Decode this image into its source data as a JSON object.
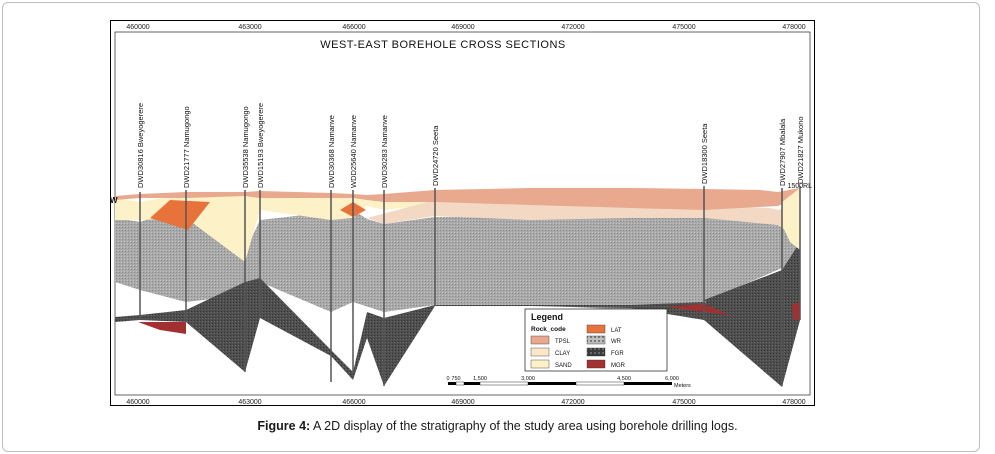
{
  "figure": {
    "title": "WEST-EAST BOREHOLE CROSS SECTIONS",
    "x_ticks_top": [
      "460000",
      "463000",
      "466000",
      "469000",
      "472000",
      "475000",
      "478000"
    ],
    "x_ticks_bottom": [
      "460000",
      "463000",
      "466000",
      "469000",
      "472000",
      "475000",
      "478000"
    ],
    "west_label": "W",
    "rl_label": "1500RL",
    "boreholes": [
      {
        "label": "DWD30816  Bweyogerere"
      },
      {
        "label": "DWD21777  Namugongo"
      },
      {
        "label": "DWD35538  Namugongo"
      },
      {
        "label": "DWD15193  Bweyogerere"
      },
      {
        "label": "DWD30368  Namanve"
      },
      {
        "label": "WDD25640  Namanve"
      },
      {
        "label": "DWD30283  Namanve"
      },
      {
        "label": "DWD24720  Seeta"
      },
      {
        "label": "DWD18300  Seeta"
      },
      {
        "label": "DWD27907  Mbalala"
      },
      {
        "label": "DWD21827  Mukono"
      }
    ],
    "legend": {
      "title": "Legend",
      "subtitle": "Rock_code",
      "items": [
        {
          "code": "TPSL",
          "color": "#e8a98e"
        },
        {
          "code": "LAT",
          "color": "#e8733a"
        },
        {
          "code": "CLAY",
          "color": "#fbe7c8"
        },
        {
          "code": "WR",
          "color": "#9a9a9a"
        },
        {
          "code": "SAND",
          "color": "#fdf1c8"
        },
        {
          "code": "FGR",
          "color": "#4a4a4a"
        },
        {
          "code": "MGR",
          "color": "#a33030"
        }
      ]
    },
    "scale_bar": {
      "labels": [
        "0",
        "750",
        "1,500",
        "3,000",
        "4,500",
        "6,000"
      ],
      "unit": "Meters"
    }
  },
  "caption": {
    "label": "Figure 4:",
    "text": " A 2D display of the stratigraphy of the study area using borehole drilling logs."
  }
}
